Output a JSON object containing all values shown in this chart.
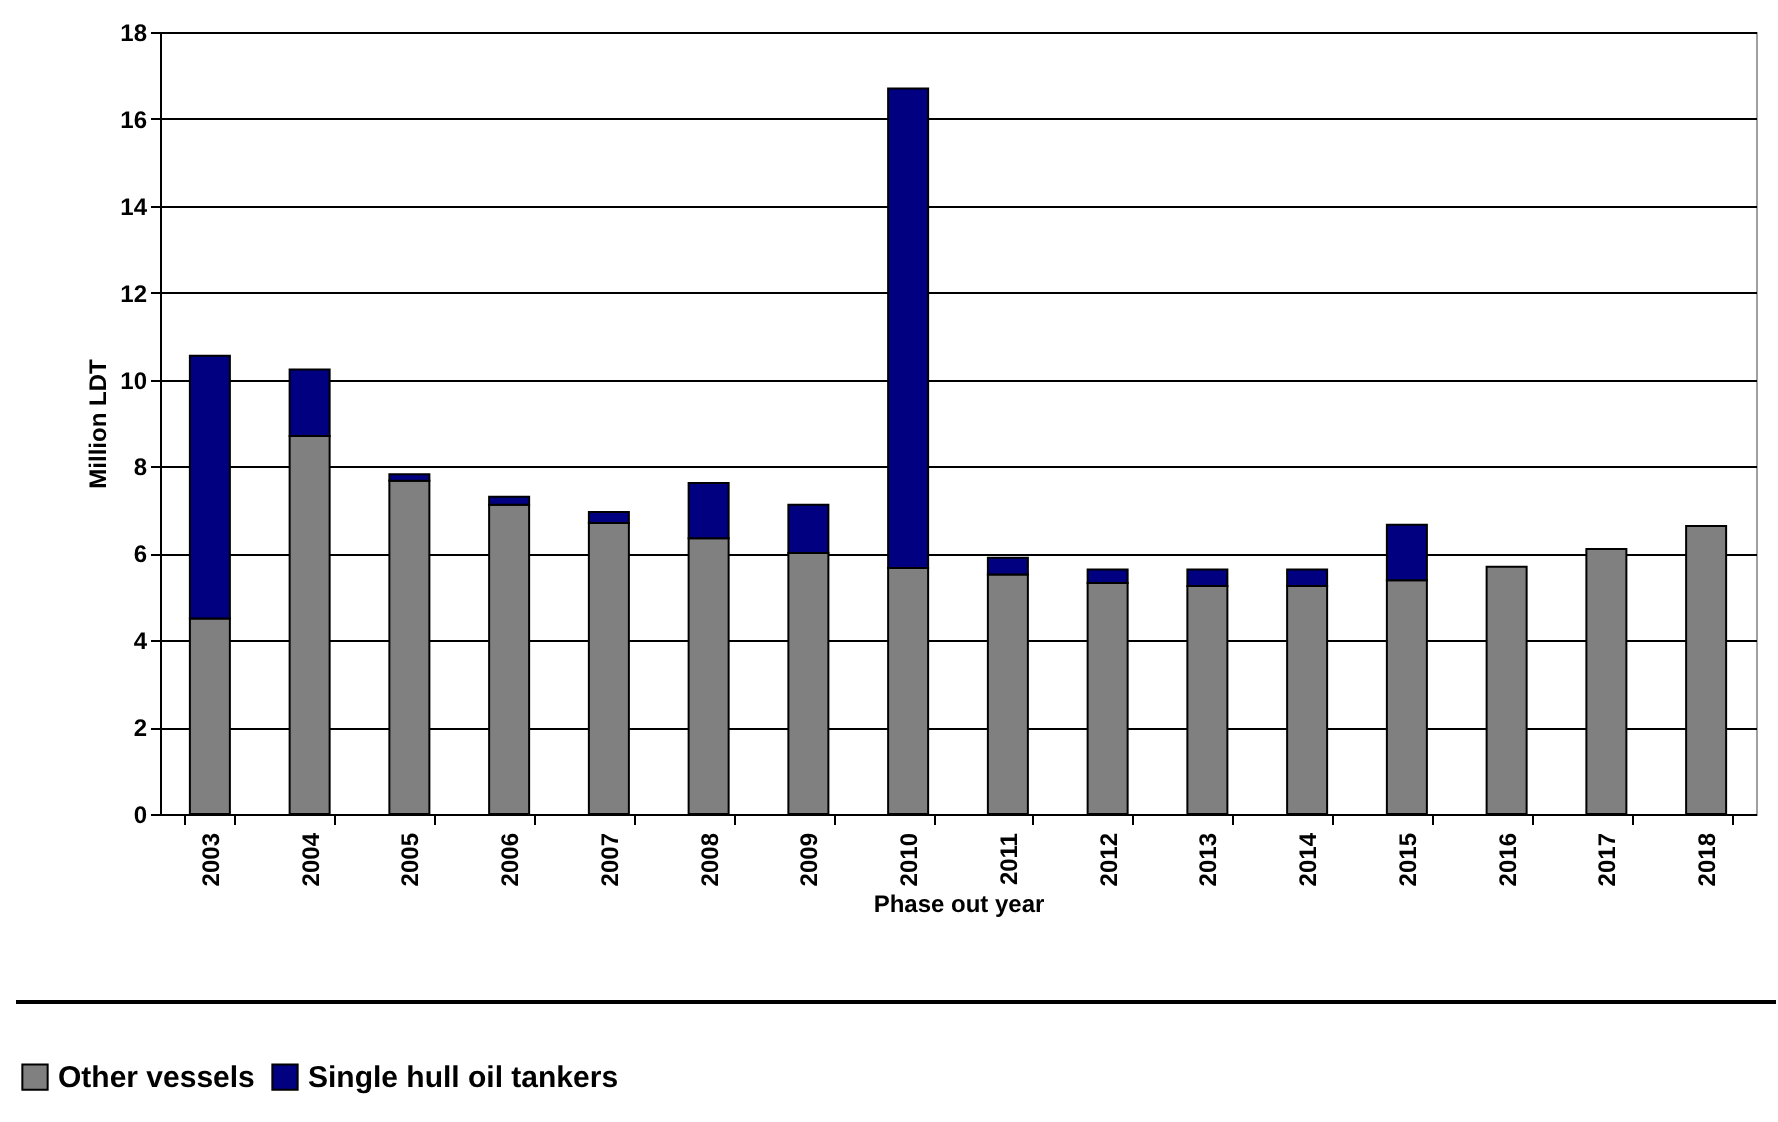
{
  "chart_data": {
    "type": "bar",
    "stacked": true,
    "xlabel": "Phase out year",
    "ylabel": "Million LDT",
    "categories": [
      "2003",
      "2004",
      "2005",
      "2006",
      "2007",
      "2008",
      "2009",
      "2010",
      "2011",
      "2012",
      "2013",
      "2014",
      "2015",
      "2016",
      "2017",
      "2018"
    ],
    "series": [
      {
        "name": "Other vessels",
        "color": "#808080",
        "values": [
          4.5,
          8.7,
          7.67,
          7.12,
          6.7,
          6.35,
          6.01,
          5.66,
          5.51,
          5.32,
          5.25,
          5.25,
          5.38,
          5.69,
          6.1,
          6.63
        ]
      },
      {
        "name": "Single hull oil tankers",
        "color": "#000080",
        "values": [
          6.05,
          1.53,
          0.15,
          0.18,
          0.25,
          1.27,
          1.11,
          11.04,
          0.39,
          0.31,
          0.38,
          0.38,
          1.28,
          null,
          null,
          null
        ]
      }
    ],
    "ylim": [
      0,
      18
    ],
    "yticks": [
      0,
      2,
      4,
      6,
      8,
      10,
      12,
      14,
      16,
      18
    ],
    "grid": "y",
    "legend": "bottom left"
  }
}
